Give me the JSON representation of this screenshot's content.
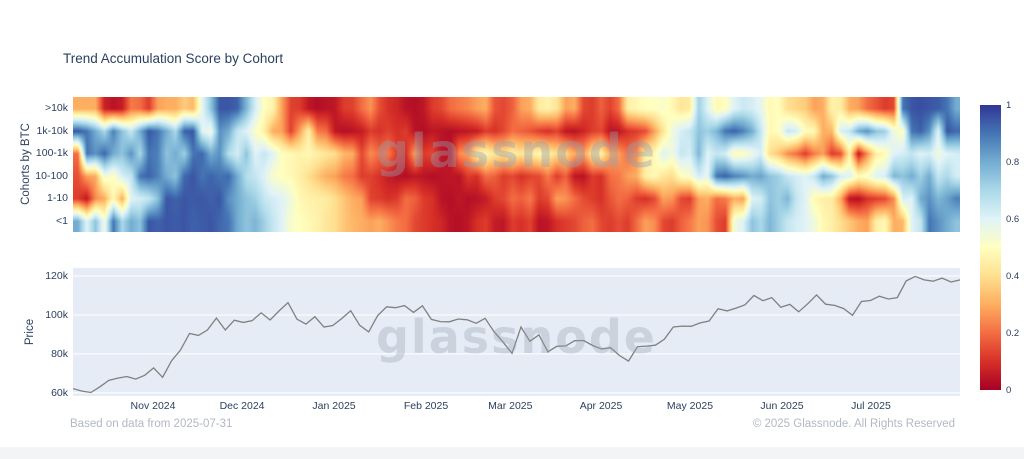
{
  "page": {
    "title": "Trend Accumulation Score by Cohort",
    "watermark": "glassnode",
    "footer_left": "Based on data from 2025-07-31",
    "footer_right": "© 2025 Glassnode. All Rights Reserved"
  },
  "colors": {
    "plot_bg": "#e5ecf6",
    "text": "#2a3f5f",
    "muted": "#b2b8c2",
    "price_line": "#808080",
    "gridline": "#ffffff",
    "colorscale": [
      "#a50026",
      "#d73027",
      "#f46d43",
      "#fdae61",
      "#fee090",
      "#ffffbf",
      "#e0f3f8",
      "#abd9e9",
      "#74add1",
      "#4575b4",
      "#313695"
    ]
  },
  "chart_data": [
    {
      "type": "heatmap",
      "title": "Trend Accumulation Score by Cohort",
      "ylabel": "Cohorts by BTC",
      "rows": [
        ">10k",
        "1k-10k",
        "100-1k",
        "10-100",
        "1-10",
        "<1"
      ],
      "zmin": 0,
      "zmax": 1,
      "colorbar_ticks": [
        {
          "label": "1",
          "value": 1
        },
        {
          "label": "0.8",
          "value": 0.8
        },
        {
          "label": "0.6",
          "value": 0.6
        },
        {
          "label": "0.4",
          "value": 0.4
        },
        {
          "label": "0.2",
          "value": 0.2
        },
        {
          "label": "0",
          "value": 0
        }
      ],
      "z": [
        [
          0.3,
          0.3,
          0.3,
          0.07,
          0.04,
          0.06,
          0.22,
          0.2,
          0.12,
          0.28,
          0.3,
          0.3,
          0.36,
          0.32,
          0.58,
          0.75,
          0.95,
          0.95,
          0.93,
          0.78,
          0.62,
          0.5,
          0.46,
          0.28,
          0.13,
          0.12,
          0.05,
          0.03,
          0.04,
          0.05,
          0.12,
          0.13,
          0.2,
          0.26,
          0.15,
          0.1,
          0.08,
          0.04,
          0.03,
          0.05,
          0.12,
          0.14,
          0.2,
          0.22,
          0.24,
          0.28,
          0.3,
          0.16,
          0.14,
          0.18,
          0.28,
          0.3,
          0.44,
          0.46,
          0.42,
          0.28,
          0.3,
          0.14,
          0.12,
          0.18,
          0.13,
          0.2,
          0.45,
          0.48,
          0.5,
          0.5,
          0.52,
          0.48,
          0.42,
          0.44,
          0.72,
          0.6,
          0.48,
          0.5,
          0.6,
          0.64,
          0.62,
          0.58,
          0.48,
          0.5,
          0.4,
          0.38,
          0.36,
          0.28,
          0.3,
          0.46,
          0.44,
          0.3,
          0.28,
          0.2,
          0.16,
          0.12,
          0.14,
          0.9,
          0.95,
          0.96,
          0.95,
          0.94,
          0.9,
          0.8
        ],
        [
          0.95,
          0.9,
          0.8,
          0.7,
          0.88,
          0.75,
          0.65,
          0.8,
          0.95,
          0.9,
          0.8,
          0.7,
          0.93,
          0.95,
          0.6,
          0.55,
          0.85,
          0.8,
          0.65,
          0.6,
          0.52,
          0.45,
          0.3,
          0.28,
          0.13,
          0.28,
          0.45,
          0.22,
          0.2,
          0.05,
          0.03,
          0.04,
          0.06,
          0.12,
          0.1,
          0.13,
          0.1,
          0.12,
          0.04,
          0.03,
          0.05,
          0.04,
          0.03,
          0.04,
          0.05,
          0.06,
          0.12,
          0.1,
          0.14,
          0.2,
          0.18,
          0.16,
          0.12,
          0.1,
          0.13,
          0.05,
          0.04,
          0.08,
          0.12,
          0.14,
          0.04,
          0.05,
          0.1,
          0.12,
          0.15,
          0.28,
          0.42,
          0.55,
          0.62,
          0.65,
          0.75,
          0.72,
          0.78,
          0.9,
          0.93,
          0.88,
          0.8,
          0.65,
          0.48,
          0.5,
          0.65,
          0.62,
          0.5,
          0.48,
          0.3,
          0.32,
          0.62,
          0.65,
          0.8,
          0.85,
          0.75,
          0.72,
          0.55,
          0.5,
          0.9,
          0.93,
          0.85,
          0.6,
          0.95,
          0.92
        ],
        [
          0.2,
          0.9,
          0.85,
          0.92,
          0.8,
          0.75,
          0.85,
          0.7,
          0.9,
          0.88,
          0.75,
          0.8,
          0.72,
          0.9,
          0.92,
          0.8,
          0.85,
          0.68,
          0.62,
          0.75,
          0.6,
          0.65,
          0.6,
          0.5,
          0.48,
          0.46,
          0.48,
          0.45,
          0.42,
          0.4,
          0.32,
          0.3,
          0.14,
          0.25,
          0.2,
          0.22,
          0.12,
          0.1,
          0.28,
          0.12,
          0.14,
          0.05,
          0.04,
          0.25,
          0.28,
          0.45,
          0.48,
          0.42,
          0.4,
          0.45,
          0.42,
          0.44,
          0.48,
          0.45,
          0.4,
          0.38,
          0.3,
          0.28,
          0.42,
          0.45,
          0.3,
          0.28,
          0.2,
          0.25,
          0.45,
          0.48,
          0.6,
          0.55,
          0.65,
          0.62,
          0.78,
          0.6,
          0.65,
          0.62,
          0.48,
          0.5,
          0.55,
          0.62,
          0.4,
          0.35,
          0.25,
          0.2,
          0.12,
          0.22,
          0.28,
          0.12,
          0.15,
          0.45,
          0.05,
          0.25,
          0.45,
          0.48,
          0.6,
          0.62,
          0.65,
          0.6,
          0.62,
          0.55,
          0.6,
          0.62
        ],
        [
          0.15,
          0.28,
          0.3,
          0.55,
          0.5,
          0.62,
          0.65,
          0.9,
          0.93,
          0.88,
          0.8,
          0.75,
          0.92,
          0.95,
          0.9,
          0.93,
          0.9,
          0.92,
          0.8,
          0.68,
          0.65,
          0.6,
          0.52,
          0.5,
          0.48,
          0.45,
          0.4,
          0.35,
          0.3,
          0.28,
          0.22,
          0.2,
          0.12,
          0.13,
          0.1,
          0.06,
          0.04,
          0.03,
          0.05,
          0.04,
          0.03,
          0.04,
          0.05,
          0.04,
          0.12,
          0.1,
          0.2,
          0.18,
          0.12,
          0.14,
          0.1,
          0.13,
          0.14,
          0.22,
          0.12,
          0.18,
          0.05,
          0.04,
          0.12,
          0.1,
          0.2,
          0.22,
          0.28,
          0.3,
          0.45,
          0.48,
          0.42,
          0.4,
          0.5,
          0.52,
          0.62,
          0.58,
          0.9,
          0.93,
          0.88,
          0.85,
          0.8,
          0.82,
          0.75,
          0.72,
          0.65,
          0.62,
          0.6,
          0.65,
          0.8,
          0.75,
          0.62,
          0.6,
          0.5,
          0.52,
          0.6,
          0.62,
          0.78,
          0.75,
          0.8,
          0.72,
          0.8,
          0.65,
          0.7,
          0.62
        ],
        [
          0.12,
          0.05,
          0.25,
          0.3,
          0.48,
          0.3,
          0.6,
          0.62,
          0.65,
          0.75,
          0.95,
          0.93,
          0.95,
          0.94,
          0.95,
          0.93,
          0.95,
          0.85,
          0.8,
          0.75,
          0.72,
          0.65,
          0.62,
          0.6,
          0.55,
          0.48,
          0.46,
          0.45,
          0.44,
          0.4,
          0.35,
          0.3,
          0.28,
          0.13,
          0.12,
          0.1,
          0.12,
          0.2,
          0.18,
          0.12,
          0.1,
          0.04,
          0.03,
          0.05,
          0.03,
          0.04,
          0.06,
          0.12,
          0.14,
          0.2,
          0.18,
          0.22,
          0.12,
          0.14,
          0.28,
          0.26,
          0.2,
          0.15,
          0.12,
          0.1,
          0.16,
          0.2,
          0.18,
          0.12,
          0.1,
          0.14,
          0.28,
          0.26,
          0.14,
          0.12,
          0.28,
          0.3,
          0.2,
          0.22,
          0.3,
          0.28,
          0.6,
          0.62,
          0.75,
          0.72,
          0.78,
          0.65,
          0.6,
          0.48,
          0.45,
          0.44,
          0.3,
          0.04,
          0.03,
          0.1,
          0.12,
          0.14,
          0.25,
          0.62,
          0.6,
          0.8,
          0.85,
          0.78,
          0.82,
          0.88
        ],
        [
          0.8,
          0.6,
          0.75,
          0.55,
          0.9,
          0.7,
          0.8,
          0.75,
          0.95,
          0.93,
          0.95,
          0.94,
          0.95,
          0.93,
          0.94,
          0.95,
          0.92,
          0.9,
          0.8,
          0.75,
          0.78,
          0.72,
          0.65,
          0.6,
          0.52,
          0.5,
          0.48,
          0.46,
          0.42,
          0.4,
          0.35,
          0.32,
          0.3,
          0.28,
          0.3,
          0.26,
          0.22,
          0.2,
          0.14,
          0.12,
          0.1,
          0.08,
          0.04,
          0.03,
          0.05,
          0.1,
          0.12,
          0.06,
          0.05,
          0.12,
          0.1,
          0.13,
          0.04,
          0.05,
          0.1,
          0.12,
          0.14,
          0.18,
          0.2,
          0.14,
          0.12,
          0.15,
          0.12,
          0.2,
          0.28,
          0.25,
          0.14,
          0.12,
          0.18,
          0.22,
          0.28,
          0.26,
          0.15,
          0.12,
          0.55,
          0.6,
          0.75,
          0.7,
          0.78,
          0.72,
          0.65,
          0.62,
          0.6,
          0.55,
          0.48,
          0.45,
          0.4,
          0.35,
          0.3,
          0.28,
          0.45,
          0.48,
          0.3,
          0.32,
          0.6,
          0.65,
          0.9,
          0.85,
          0.8,
          0.75
        ]
      ]
    },
    {
      "type": "line",
      "ylabel": "Price",
      "ylim": [
        58.4,
        124.1
      ],
      "y_ticks": [
        {
          "label": "120k",
          "value": 120
        },
        {
          "label": "100k",
          "value": 100
        },
        {
          "label": "80k",
          "value": 80
        },
        {
          "label": "60k",
          "value": 60
        }
      ],
      "x_ticks": [
        {
          "label": "Nov 2024",
          "f": 0.0902
        },
        {
          "label": "Dec 2024",
          "f": 0.1906
        },
        {
          "label": "Jan 2025",
          "f": 0.2943
        },
        {
          "label": "Feb 2025",
          "f": 0.398
        },
        {
          "label": "Mar 2025",
          "f": 0.493
        },
        {
          "label": "Apr 2025",
          "f": 0.5953
        },
        {
          "label": "May 2025",
          "f": 0.6956
        },
        {
          "label": "Jun 2025",
          "f": 0.7993
        },
        {
          "label": "Jul 2025",
          "f": 0.8996
        }
      ],
      "values": [
        62.2,
        60.9,
        60.2,
        63.1,
        66.4,
        67.6,
        68.4,
        67.1,
        69.0,
        72.8,
        68.0,
        76.5,
        82.0,
        90.5,
        89.5,
        92.3,
        98.4,
        92.3,
        97.3,
        96.2,
        97.1,
        101.1,
        97.4,
        102.1,
        106.3,
        97.8,
        95.3,
        99.1,
        93.8,
        94.6,
        98.2,
        102.2,
        94.7,
        91.3,
        99.6,
        104.2,
        103.7,
        104.8,
        101.3,
        104.7,
        97.7,
        96.6,
        96.5,
        97.9,
        97.5,
        95.7,
        98.3,
        91.4,
        86.0,
        80.3,
        93.8,
        86.5,
        89.8,
        81.1,
        83.9,
        84.1,
        86.8,
        86.9,
        84.3,
        82.5,
        83.2,
        79.2,
        76.3,
        83.7,
        84.0,
        84.5,
        87.5,
        93.8,
        94.3,
        94.2,
        95.9,
        96.9,
        103.2,
        102.1,
        103.5,
        105.2,
        110.0,
        107.3,
        108.9,
        104.0,
        105.4,
        101.6,
        105.7,
        110.3,
        105.5,
        104.9,
        103.3,
        99.8,
        106.9,
        107.4,
        109.6,
        108.2,
        108.9,
        117.5,
        119.8,
        118.0,
        117.3,
        118.9,
        116.9,
        118.0
      ]
    }
  ]
}
